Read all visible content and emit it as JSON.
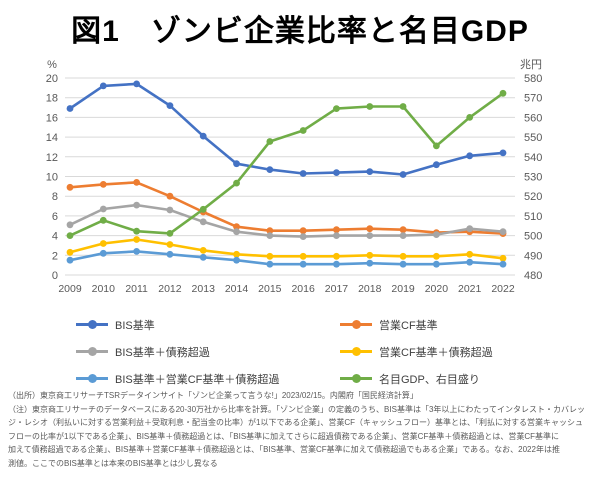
{
  "title": "図1　ゾンビ企業比率と名目GDP",
  "chart_data": {
    "type": "line",
    "x": [
      2009,
      2010,
      2011,
      2012,
      2013,
      2014,
      2015,
      2016,
      2017,
      2018,
      2019,
      2020,
      2021,
      2022
    ],
    "left_axis": {
      "unit": "%",
      "min": 0,
      "max": 20,
      "step": 2
    },
    "right_axis": {
      "unit": "兆円",
      "min": 480,
      "max": 570,
      "step": 10
    },
    "grid": true,
    "legend_position": "bottom",
    "series": [
      {
        "name": "BIS基準",
        "color": "#4472C4",
        "axis": "left",
        "values": [
          16.9,
          19.2,
          19.4,
          17.2,
          14.1,
          11.3,
          10.7,
          10.3,
          10.4,
          10.5,
          10.2,
          11.2,
          12.1,
          12.4
        ]
      },
      {
        "name": "営業CF基準",
        "color": "#ED7D31",
        "axis": "left",
        "values": [
          8.9,
          9.2,
          9.4,
          8.0,
          6.4,
          4.9,
          4.5,
          4.5,
          4.6,
          4.7,
          4.6,
          4.3,
          4.4,
          4.2
        ]
      },
      {
        "name": "BIS基準＋債務超過",
        "color": "#A5A5A5",
        "axis": "left",
        "values": [
          5.1,
          6.7,
          7.1,
          6.6,
          5.4,
          4.4,
          4.0,
          3.9,
          4.0,
          4.0,
          4.0,
          4.1,
          4.7,
          4.4
        ]
      },
      {
        "name": "営業CF基準＋債務超過",
        "color": "#FFC000",
        "axis": "left",
        "values": [
          2.3,
          3.2,
          3.6,
          3.1,
          2.5,
          2.1,
          1.9,
          1.9,
          1.9,
          2.0,
          1.9,
          1.9,
          2.1,
          1.7
        ]
      },
      {
        "name": "BIS基準＋営業CF基準＋債務超過",
        "color": "#5B9BD5",
        "axis": "left",
        "values": [
          1.5,
          2.2,
          2.4,
          2.1,
          1.8,
          1.5,
          1.1,
          1.1,
          1.1,
          1.2,
          1.1,
          1.1,
          1.3,
          1.1
        ]
      },
      {
        "name": "名目GDP、右目盛り",
        "color": "#70AD47",
        "axis": "right",
        "values": [
          498,
          505,
          500,
          499,
          510,
          522,
          541,
          546,
          556,
          557,
          557,
          539,
          552,
          563
        ]
      }
    ]
  },
  "footnotes": [
    "（出所）東京商工リサーチTSRデータインサイト「ゾンビ企業って言うな!」2023/02/15。内閣府「国民経済計算」",
    "（注）東京商工リサーチのデータベースにある20-30万社から比率を計算。「ゾンビ企業」の定義のうち、BIS基準は「3年以上にわたってインタレスト・カバレッ",
    "ジ・レシオ（利払いに対する営業利益＋受取利息・配当金の比率）が1以下である企業」、営業CF（キャッシュフロー）基準とは、「利払に対する営業キャッシュ",
    "フローの比率が1以下である企業」、BIS基準＋債務超過とは、「BIS基準に加えてさらに超過債務である企業」、営業CF基準＋債務超過とは、営業CF基準に",
    "加えて債務超過である企業」、BIS基準＋営業CF基準＋債務超過とは、「BIS基準、営業CF基準に加えて債務超過でもある企業」である。なお、2022年は推",
    "測値。ここでのBIS基準とは本来のBIS基準とは少し異なる"
  ],
  "colors": {
    "gridline": "#D9D9D9",
    "tick_text": "#595959",
    "footnote_text": "#595959"
  }
}
